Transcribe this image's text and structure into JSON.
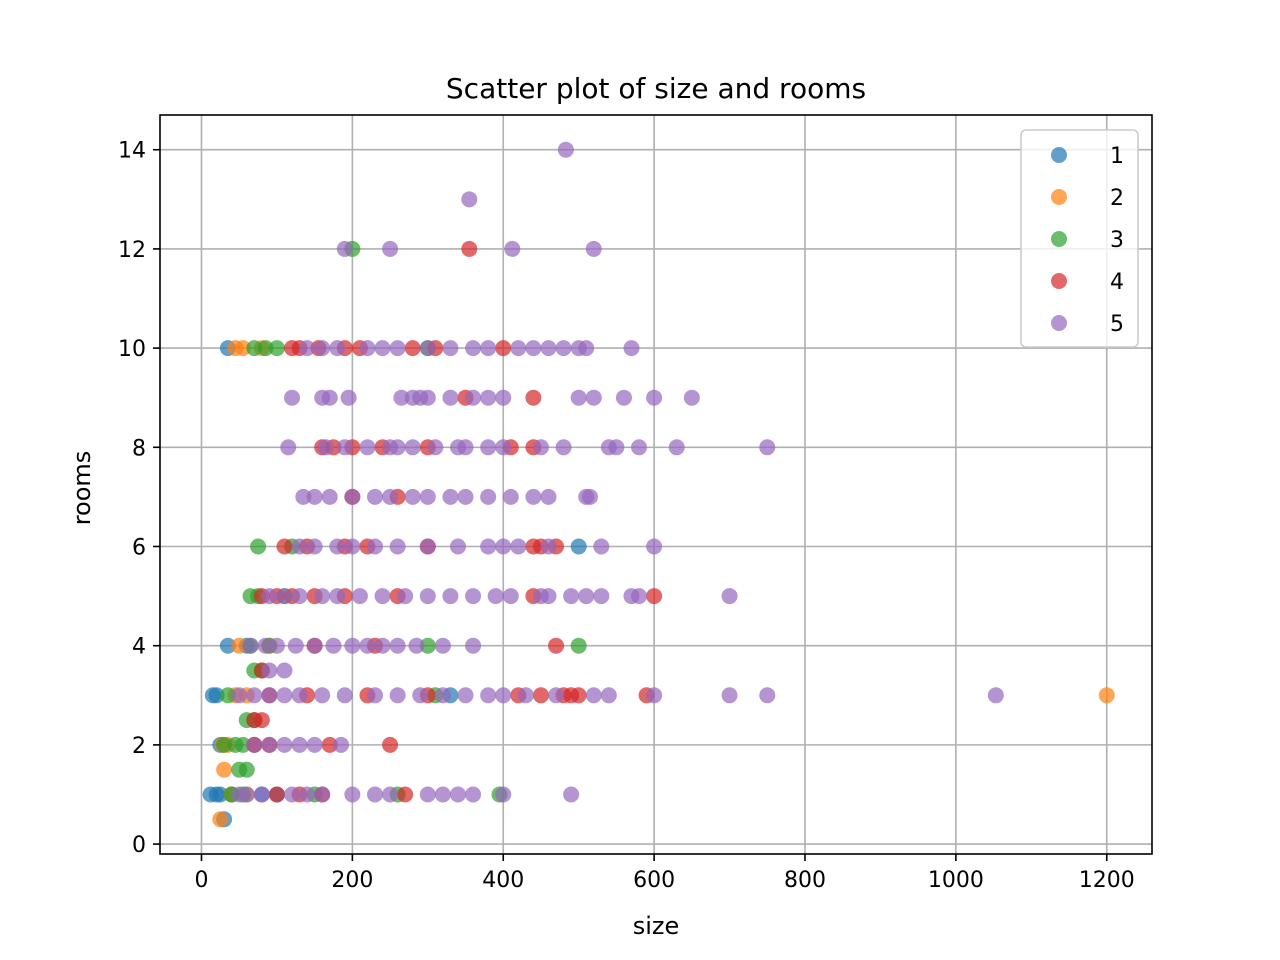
{
  "chart_data": {
    "type": "scatter",
    "title": "Scatter plot of size and rooms",
    "xlabel": "size",
    "ylabel": "rooms",
    "xlim": [
      -55,
      1260
    ],
    "ylim": [
      -0.2,
      14.7
    ],
    "xticks": [
      0,
      200,
      400,
      600,
      800,
      1000,
      1200
    ],
    "yticks": [
      0,
      2,
      4,
      6,
      8,
      10,
      12,
      14
    ],
    "grid": true,
    "legend_position": "top-right",
    "series": [
      {
        "name": "1",
        "color": "#1f77b4",
        "points": [
          [
            35,
            10
          ],
          [
            20,
            1
          ],
          [
            25,
            1
          ],
          [
            12,
            1
          ],
          [
            30,
            0.5
          ],
          [
            15,
            3
          ],
          [
            20,
            3
          ],
          [
            35,
            4
          ],
          [
            500,
            6
          ],
          [
            330,
            3
          ],
          [
            60,
            4
          ],
          [
            40,
            1
          ],
          [
            80,
            1
          ],
          [
            100,
            1
          ],
          [
            25,
            2
          ]
        ]
      },
      {
        "name": "2",
        "color": "#ff7f0e",
        "points": [
          [
            45,
            10
          ],
          [
            55,
            10
          ],
          [
            28,
            2
          ],
          [
            30,
            1.5
          ],
          [
            25,
            0.5
          ],
          [
            40,
            1
          ],
          [
            50,
            4
          ],
          [
            45,
            3
          ],
          [
            60,
            3
          ],
          [
            35,
            2
          ],
          [
            1200,
            3
          ],
          [
            60,
            1
          ],
          [
            70,
            2
          ],
          [
            80,
            10
          ],
          [
            90,
            4
          ]
        ]
      },
      {
        "name": "3",
        "color": "#2ca02c",
        "points": [
          [
            200,
            12
          ],
          [
            70,
            10
          ],
          [
            85,
            10
          ],
          [
            100,
            10
          ],
          [
            75,
            6
          ],
          [
            65,
            5
          ],
          [
            75,
            5
          ],
          [
            65,
            4
          ],
          [
            70,
            3.5
          ],
          [
            80,
            3.5
          ],
          [
            60,
            2.5
          ],
          [
            70,
            2.5
          ],
          [
            60,
            1.5
          ],
          [
            50,
            1.5
          ],
          [
            40,
            1
          ],
          [
            55,
            1
          ],
          [
            395,
            1
          ],
          [
            500,
            4
          ],
          [
            300,
            4
          ],
          [
            310,
            3
          ],
          [
            260,
            1
          ],
          [
            150,
            1
          ],
          [
            30,
            2
          ],
          [
            45,
            2
          ],
          [
            55,
            2
          ],
          [
            35,
            3
          ],
          [
            90,
            4
          ],
          [
            300,
            10
          ],
          [
            120,
            6
          ],
          [
            110,
            5
          ]
        ]
      },
      {
        "name": "4",
        "color": "#d62728",
        "points": [
          [
            355,
            12
          ],
          [
            120,
            10
          ],
          [
            130,
            10
          ],
          [
            155,
            10
          ],
          [
            190,
            10
          ],
          [
            210,
            10
          ],
          [
            280,
            10
          ],
          [
            310,
            10
          ],
          [
            400,
            10
          ],
          [
            160,
            8
          ],
          [
            175,
            8
          ],
          [
            200,
            8
          ],
          [
            240,
            8
          ],
          [
            300,
            8
          ],
          [
            410,
            8
          ],
          [
            440,
            8
          ],
          [
            110,
            6
          ],
          [
            140,
            6
          ],
          [
            190,
            6
          ],
          [
            220,
            6
          ],
          [
            300,
            6
          ],
          [
            440,
            6
          ],
          [
            450,
            6
          ],
          [
            470,
            6
          ],
          [
            80,
            5
          ],
          [
            100,
            5
          ],
          [
            120,
            5
          ],
          [
            150,
            5
          ],
          [
            190,
            5
          ],
          [
            260,
            5
          ],
          [
            440,
            5
          ],
          [
            600,
            5
          ],
          [
            470,
            4
          ],
          [
            230,
            4
          ],
          [
            150,
            4
          ],
          [
            80,
            3.5
          ],
          [
            90,
            3
          ],
          [
            140,
            3
          ],
          [
            220,
            3
          ],
          [
            300,
            3
          ],
          [
            420,
            3
          ],
          [
            450,
            3
          ],
          [
            480,
            3
          ],
          [
            490,
            3
          ],
          [
            500,
            3
          ],
          [
            590,
            3
          ],
          [
            250,
            2
          ],
          [
            170,
            2
          ],
          [
            80,
            2.5
          ],
          [
            70,
            2.5
          ],
          [
            70,
            2
          ],
          [
            90,
            2
          ],
          [
            100,
            1
          ],
          [
            130,
            1
          ],
          [
            160,
            1
          ],
          [
            270,
            1
          ],
          [
            350,
            9
          ],
          [
            440,
            9
          ],
          [
            200,
            7
          ],
          [
            260,
            7
          ]
        ]
      },
      {
        "name": "5",
        "color": "#9467bd",
        "points": [
          [
            483,
            14
          ],
          [
            355,
            13
          ],
          [
            190,
            12
          ],
          [
            250,
            12
          ],
          [
            412,
            12
          ],
          [
            520,
            12
          ],
          [
            570,
            10
          ],
          [
            140,
            10
          ],
          [
            160,
            10
          ],
          [
            180,
            10
          ],
          [
            220,
            10
          ],
          [
            240,
            10
          ],
          [
            260,
            10
          ],
          [
            300,
            10
          ],
          [
            330,
            10
          ],
          [
            360,
            10
          ],
          [
            380,
            10
          ],
          [
            420,
            10
          ],
          [
            440,
            10
          ],
          [
            460,
            10
          ],
          [
            480,
            10
          ],
          [
            500,
            10
          ],
          [
            510,
            10
          ],
          [
            120,
            9
          ],
          [
            160,
            9
          ],
          [
            170,
            9
          ],
          [
            195,
            9
          ],
          [
            265,
            9
          ],
          [
            280,
            9
          ],
          [
            290,
            9
          ],
          [
            300,
            9
          ],
          [
            330,
            9
          ],
          [
            360,
            9
          ],
          [
            380,
            9
          ],
          [
            400,
            9
          ],
          [
            500,
            9
          ],
          [
            520,
            9
          ],
          [
            560,
            9
          ],
          [
            600,
            9
          ],
          [
            650,
            9
          ],
          [
            115,
            8
          ],
          [
            165,
            8
          ],
          [
            190,
            8
          ],
          [
            220,
            8
          ],
          [
            250,
            8
          ],
          [
            260,
            8
          ],
          [
            280,
            8
          ],
          [
            310,
            8
          ],
          [
            340,
            8
          ],
          [
            350,
            8
          ],
          [
            380,
            8
          ],
          [
            400,
            8
          ],
          [
            450,
            8
          ],
          [
            480,
            8
          ],
          [
            540,
            8
          ],
          [
            550,
            8
          ],
          [
            580,
            8
          ],
          [
            630,
            8
          ],
          [
            750,
            8
          ],
          [
            135,
            7
          ],
          [
            150,
            7
          ],
          [
            170,
            7
          ],
          [
            200,
            7
          ],
          [
            230,
            7
          ],
          [
            250,
            7
          ],
          [
            280,
            7
          ],
          [
            300,
            7
          ],
          [
            330,
            7
          ],
          [
            350,
            7
          ],
          [
            380,
            7
          ],
          [
            410,
            7
          ],
          [
            440,
            7
          ],
          [
            460,
            7
          ],
          [
            510,
            7
          ],
          [
            515,
            7
          ],
          [
            130,
            6
          ],
          [
            150,
            6
          ],
          [
            180,
            6
          ],
          [
            200,
            6
          ],
          [
            230,
            6
          ],
          [
            260,
            6
          ],
          [
            300,
            6
          ],
          [
            340,
            6
          ],
          [
            380,
            6
          ],
          [
            400,
            6
          ],
          [
            420,
            6
          ],
          [
            460,
            6
          ],
          [
            530,
            6
          ],
          [
            600,
            6
          ],
          [
            90,
            5
          ],
          [
            110,
            5
          ],
          [
            130,
            5
          ],
          [
            160,
            5
          ],
          [
            180,
            5
          ],
          [
            210,
            5
          ],
          [
            240,
            5
          ],
          [
            270,
            5
          ],
          [
            300,
            5
          ],
          [
            330,
            5
          ],
          [
            360,
            5
          ],
          [
            390,
            5
          ],
          [
            410,
            5
          ],
          [
            450,
            5
          ],
          [
            460,
            5
          ],
          [
            490,
            5
          ],
          [
            510,
            5
          ],
          [
            530,
            5
          ],
          [
            570,
            5
          ],
          [
            580,
            5
          ],
          [
            700,
            5
          ],
          [
            65,
            4
          ],
          [
            85,
            4
          ],
          [
            100,
            4
          ],
          [
            125,
            4
          ],
          [
            150,
            4
          ],
          [
            175,
            4
          ],
          [
            200,
            4
          ],
          [
            220,
            4
          ],
          [
            240,
            4
          ],
          [
            260,
            4
          ],
          [
            285,
            4
          ],
          [
            320,
            4
          ],
          [
            360,
            4
          ],
          [
            50,
            3
          ],
          [
            70,
            3
          ],
          [
            90,
            3
          ],
          [
            110,
            3
          ],
          [
            130,
            3
          ],
          [
            160,
            3
          ],
          [
            190,
            3
          ],
          [
            230,
            3
          ],
          [
            260,
            3
          ],
          [
            290,
            3
          ],
          [
            320,
            3
          ],
          [
            350,
            3
          ],
          [
            380,
            3
          ],
          [
            400,
            3
          ],
          [
            430,
            3
          ],
          [
            470,
            3
          ],
          [
            520,
            3
          ],
          [
            540,
            3
          ],
          [
            600,
            3
          ],
          [
            700,
            3
          ],
          [
            750,
            3
          ],
          [
            1053,
            3
          ],
          [
            90,
            3.5
          ],
          [
            110,
            3.5
          ],
          [
            70,
            2
          ],
          [
            90,
            2
          ],
          [
            110,
            2
          ],
          [
            130,
            2
          ],
          [
            150,
            2
          ],
          [
            185,
            2
          ],
          [
            50,
            1
          ],
          [
            60,
            1
          ],
          [
            80,
            1
          ],
          [
            120,
            1
          ],
          [
            140,
            1
          ],
          [
            160,
            1
          ],
          [
            200,
            1
          ],
          [
            230,
            1
          ],
          [
            250,
            1
          ],
          [
            300,
            1
          ],
          [
            320,
            1
          ],
          [
            340,
            1
          ],
          [
            360,
            1
          ],
          [
            400,
            1
          ],
          [
            490,
            1
          ]
        ]
      }
    ]
  }
}
